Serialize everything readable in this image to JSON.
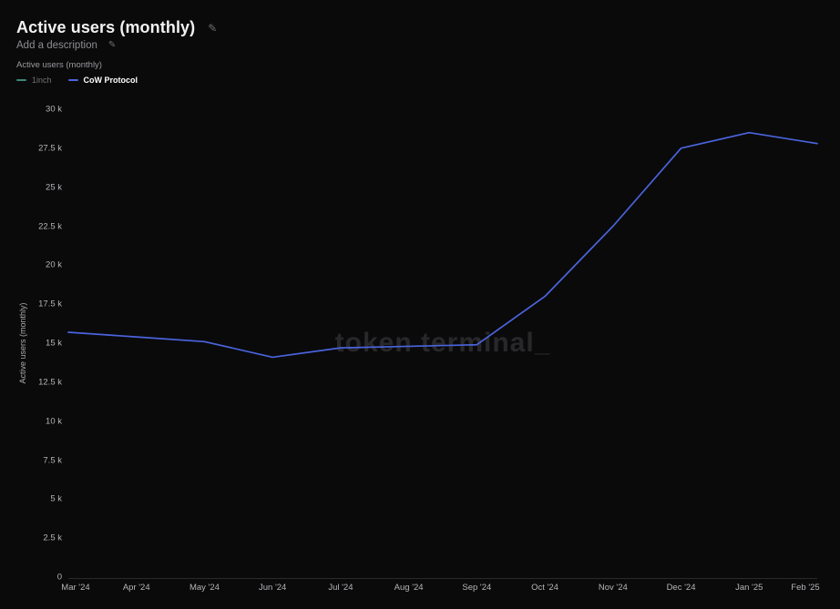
{
  "header": {
    "title": "Active users (monthly)",
    "add_description": "Add a description"
  },
  "icons": {
    "edit": "✎"
  },
  "chart": {
    "subtitle": "Active users (monthly)"
  },
  "chart_data": {
    "type": "line",
    "title": "Active users (monthly)",
    "x": [
      "Mar '24",
      "Apr '24",
      "May '24",
      "Jun '24",
      "Jul '24",
      "Aug '24",
      "Sep '24",
      "Oct '24",
      "Nov '24",
      "Dec '24",
      "Jan '25",
      "Feb '25"
    ],
    "series": [
      {
        "name": "1inch",
        "color": "#3f8577",
        "visible": false,
        "values": []
      },
      {
        "name": "CoW Protocol",
        "color": "#4a64dd",
        "visible": true,
        "values": [
          15700,
          15400,
          15100,
          14100,
          14700,
          14800,
          14900,
          18000,
          22500,
          27500,
          28500,
          27800
        ]
      }
    ],
    "xlabel": "",
    "ylabel": "Active users (monthly)",
    "ylim": [
      0,
      30000
    ],
    "ytick_step": 2500,
    "ytick_labels": [
      "0",
      "2.5 k",
      "5 k",
      "7.5 k",
      "10 k",
      "12.5 k",
      "15 k",
      "17.5 k",
      "20 k",
      "22.5 k",
      "25 k",
      "27.5 k",
      "30 k"
    ],
    "grid": false,
    "legend_position": "top-left",
    "watermark": "token terminal_",
    "axis_line_color": "#2a2a2d",
    "background_color": "#0a0a0b"
  }
}
